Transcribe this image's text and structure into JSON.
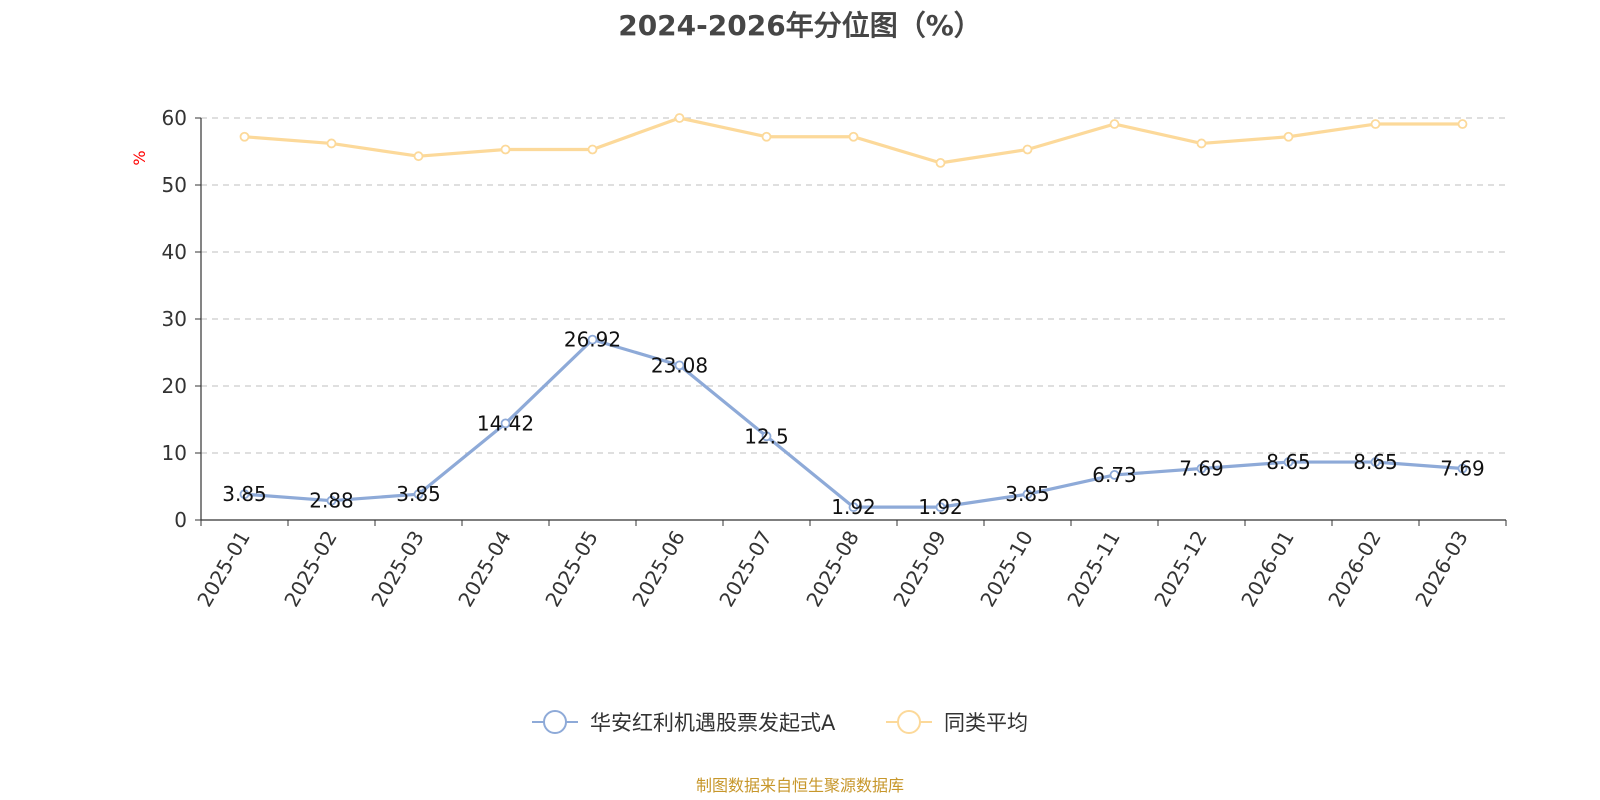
{
  "title": "2024-2026年分位图（%）",
  "source": "制图数据来自恒生聚源数据库",
  "chart_data": {
    "type": "line",
    "title": "2024-2026年分位图（%）",
    "ylabel": "%",
    "xlabel": "",
    "ylim": [
      0,
      60
    ],
    "yticks": [
      0,
      10,
      20,
      30,
      40,
      50,
      60
    ],
    "grid": "horizontal dashed",
    "legend_position": "bottom",
    "categories": [
      "2025-01",
      "2025-02",
      "2025-03",
      "2025-04",
      "2025-05",
      "2025-06",
      "2025-07",
      "2025-08",
      "2025-09",
      "2025-10",
      "2025-11",
      "2025-12",
      "2026-01",
      "2026-02",
      "2026-03"
    ],
    "series": [
      {
        "name": "华安红利机遇股票发起式A",
        "color": "#8eaad8",
        "values": [
          3.85,
          2.88,
          3.85,
          14.42,
          26.92,
          23.08,
          12.5,
          1.92,
          1.92,
          3.85,
          6.73,
          7.69,
          8.65,
          8.65,
          7.69
        ],
        "labels": [
          "3.85",
          "2.88",
          "3.85",
          "14.42",
          "26.92",
          "23.08",
          "12.5",
          "1.92",
          "1.92",
          "3.85",
          "6.73",
          "7.69",
          "8.65",
          "8.65",
          "7.69"
        ],
        "show_labels": true
      },
      {
        "name": "同类平均",
        "color": "#fcd99a",
        "values": [
          57.2,
          56.2,
          54.3,
          55.3,
          55.3,
          60.0,
          57.2,
          57.2,
          53.3,
          55.3,
          59.1,
          56.2,
          57.2,
          59.1,
          59.1
        ],
        "show_labels": false
      }
    ]
  }
}
